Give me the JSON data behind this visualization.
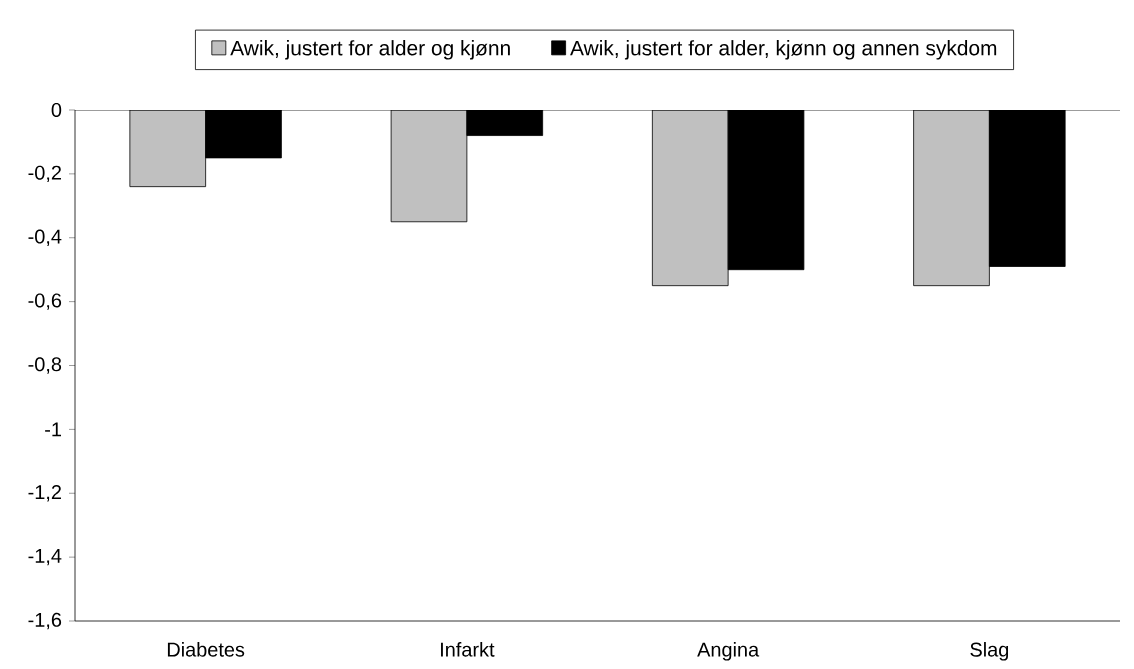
{
  "chart_data": {
    "type": "bar",
    "categories": [
      "Diabetes",
      "Infarkt",
      "Angina",
      "Slag"
    ],
    "series": [
      {
        "name": "Awik, justert for alder og kjønn",
        "color": "#c0c0c0",
        "values": [
          -0.24,
          -0.35,
          -0.55,
          -0.55
        ]
      },
      {
        "name": "Awik, justert for alder, kjønn og annen sykdom",
        "color": "#000000",
        "values": [
          -0.15,
          -0.08,
          -0.5,
          -0.49
        ]
      }
    ],
    "ylim": [
      -1.6,
      0
    ],
    "yticks": [
      {
        "value": -1.6,
        "label": "-1,6"
      },
      {
        "value": -1.4,
        "label": "-1,4"
      },
      {
        "value": -1.2,
        "label": "-1,2"
      },
      {
        "value": -1,
        "label": "-1"
      },
      {
        "value": -0.8,
        "label": "-0,8"
      },
      {
        "value": -0.6,
        "label": "-0,6"
      },
      {
        "value": -0.4,
        "label": "-0,4"
      },
      {
        "value": -0.2,
        "label": "-0,2"
      },
      {
        "value": 0,
        "label": "0"
      }
    ],
    "legend": "top",
    "grid": false
  }
}
